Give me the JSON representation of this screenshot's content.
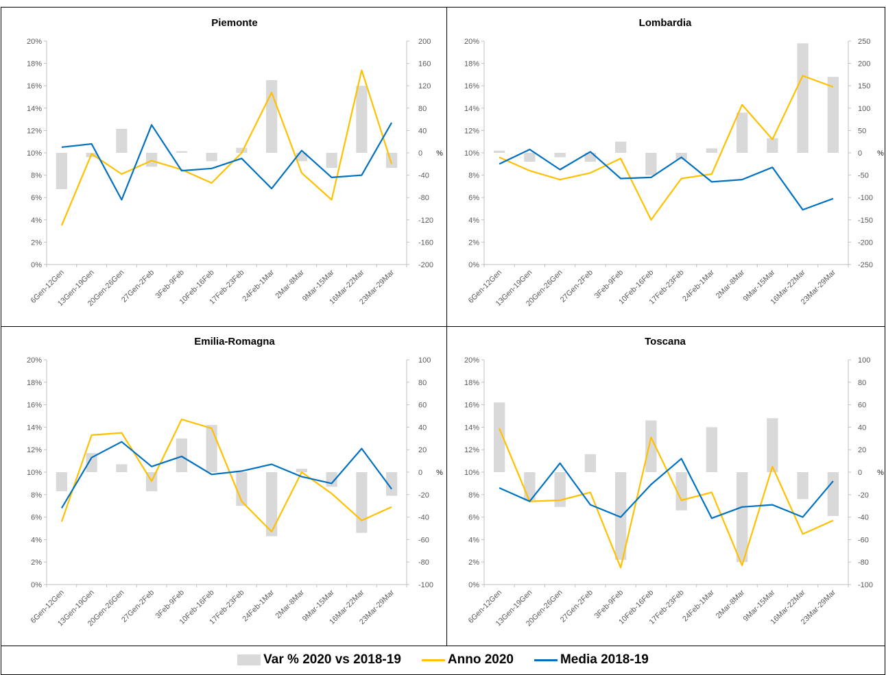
{
  "colors": {
    "bar": "#d9d9d9",
    "anno_2020": "#ffc000",
    "media_2018_19": "#0070c0",
    "axis": "#bfbfbf",
    "text": "#595959"
  },
  "legend": {
    "bar_label": "Var % 2020 vs 2018-19",
    "anno_label": "Anno 2020",
    "media_label": "Media 2018-19"
  },
  "chart_data": [
    {
      "type": "bar+line",
      "title": "Piemonte",
      "categories": [
        "6Gen-12Gen",
        "13Gen-19Gen",
        "20Gen-26Gen",
        "27Gen-2Feb",
        "3Feb-9Feb",
        "10Feb-16Feb",
        "17Feb-23Feb",
        "24Feb-1Mar",
        "2Mar-8Mar",
        "9Mar-15Mar",
        "16Mar-22Mar",
        "23Mar-29Mar"
      ],
      "y_left": {
        "min": 0,
        "max": 20,
        "step": 2,
        "suffix": "%"
      },
      "y_right": {
        "min": -200,
        "max": 200,
        "step": 40,
        "label": "%"
      },
      "series": [
        {
          "name": "Var % 2020 vs 2018-19",
          "kind": "bar",
          "axis": "right",
          "values": [
            -65,
            -8,
            43,
            -25,
            3,
            -15,
            9,
            130,
            -15,
            -27,
            120,
            -27
          ]
        },
        {
          "name": "Anno 2020",
          "kind": "line",
          "axis": "left",
          "values": [
            3.5,
            9.9,
            8.1,
            9.3,
            8.5,
            7.3,
            10.0,
            15.4,
            8.2,
            5.8,
            17.4,
            9.0
          ]
        },
        {
          "name": "Media 2018-19",
          "kind": "line",
          "axis": "left",
          "values": [
            10.5,
            10.8,
            5.8,
            12.5,
            8.4,
            8.6,
            9.5,
            6.8,
            10.2,
            7.8,
            8.0,
            12.7
          ]
        }
      ]
    },
    {
      "type": "bar+line",
      "title": "Lombardia",
      "categories": [
        "6Gen-12Gen",
        "13Gen-19Gen",
        "20Gen-26Gen",
        "27Gen-2Feb",
        "3Feb-9Feb",
        "10Feb-16Feb",
        "17Feb-23Feb",
        "24Feb-1Mar",
        "2Mar-8Mar",
        "9Mar-15Mar",
        "16Mar-22Mar",
        "23Mar-29Mar"
      ],
      "y_left": {
        "min": 0,
        "max": 20,
        "step": 2,
        "suffix": "%"
      },
      "y_right": {
        "min": -250,
        "max": 250,
        "step": 50,
        "label": "%"
      },
      "series": [
        {
          "name": "Var % 2020 vs 2018-19",
          "kind": "bar",
          "axis": "right",
          "values": [
            5,
            -20,
            -10,
            -20,
            25,
            -50,
            -15,
            10,
            90,
            33,
            245,
            170
          ]
        },
        {
          "name": "Anno 2020",
          "kind": "line",
          "axis": "left",
          "values": [
            9.6,
            8.4,
            7.6,
            8.2,
            9.5,
            4.0,
            7.7,
            8.1,
            14.3,
            11.2,
            16.9,
            15.9
          ]
        },
        {
          "name": "Media 2018-19",
          "kind": "line",
          "axis": "left",
          "values": [
            9.0,
            10.3,
            8.5,
            10.1,
            7.7,
            7.8,
            9.6,
            7.4,
            7.6,
            8.7,
            4.9,
            5.9
          ]
        }
      ]
    },
    {
      "type": "bar+line",
      "title": "Emilia-Romagna",
      "categories": [
        "6Gen-12Gen",
        "13Gen-19Gen",
        "20Gen-26Gen",
        "27Gen-2Feb",
        "3Feb-9Feb",
        "10Feb-16Feb",
        "17Feb-23Feb",
        "24Feb-1Mar",
        "2Mar-8Mar",
        "9Mar-15Mar",
        "16Mar-22Mar",
        "23Mar-29Mar"
      ],
      "y_left": {
        "min": 0,
        "max": 20,
        "step": 2,
        "suffix": "%"
      },
      "y_right": {
        "min": -100,
        "max": 100,
        "step": 20,
        "label": "%"
      },
      "series": [
        {
          "name": "Var % 2020 vs 2018-19",
          "kind": "bar",
          "axis": "right",
          "values": [
            -17,
            17,
            7,
            -17,
            30,
            42,
            -30,
            -57,
            3,
            -13,
            -54,
            -21
          ]
        },
        {
          "name": "Anno 2020",
          "kind": "line",
          "axis": "left",
          "values": [
            5.6,
            13.3,
            13.5,
            9.2,
            14.7,
            13.9,
            7.4,
            4.7,
            10.0,
            8.1,
            5.7,
            6.9
          ]
        },
        {
          "name": "Media 2018-19",
          "kind": "line",
          "axis": "left",
          "values": [
            6.8,
            11.3,
            12.7,
            10.5,
            11.4,
            9.8,
            10.1,
            10.7,
            9.6,
            9.0,
            12.1,
            8.5
          ]
        }
      ]
    },
    {
      "type": "bar+line",
      "title": "Toscana",
      "categories": [
        "6Gen-12Gen",
        "13Gen-19Gen",
        "20Gen-26Gen",
        "27Gen-2Feb",
        "3Feb-9Feb",
        "10Feb-16Feb",
        "17Feb-23Feb",
        "24Feb-1Mar",
        "2Mar-8Mar",
        "9Mar-15Mar",
        "16Mar-22Mar",
        "23Mar-29Mar"
      ],
      "y_left": {
        "min": 0,
        "max": 20,
        "step": 2,
        "suffix": "%"
      },
      "y_right": {
        "min": -100,
        "max": 100,
        "step": 20,
        "label": "%"
      },
      "series": [
        {
          "name": "Var % 2020 vs 2018-19",
          "kind": "bar",
          "axis": "right",
          "values": [
            62,
            -25,
            -31,
            16,
            -78,
            46,
            -34,
            40,
            -80,
            48,
            -24,
            -39
          ]
        },
        {
          "name": "Anno 2020",
          "kind": "line",
          "axis": "left",
          "values": [
            13.9,
            7.4,
            7.5,
            8.2,
            1.5,
            13.1,
            7.5,
            8.2,
            1.7,
            10.5,
            4.5,
            5.7
          ]
        },
        {
          "name": "Media 2018-19",
          "kind": "line",
          "axis": "left",
          "values": [
            8.6,
            7.4,
            10.8,
            7.1,
            6.0,
            8.9,
            11.2,
            5.9,
            6.9,
            7.1,
            6.0,
            9.2
          ]
        }
      ]
    }
  ]
}
